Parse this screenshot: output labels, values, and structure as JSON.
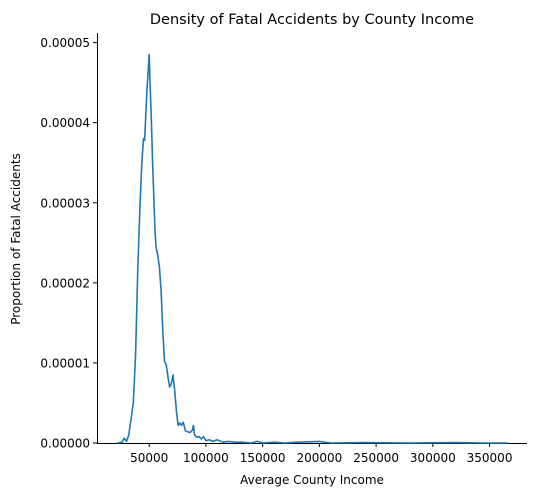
{
  "chart_data": {
    "type": "line",
    "title": "Density of Fatal Accidents by County Income",
    "xlabel": "Average County Income",
    "ylabel": "Proportion of Fatal Accidents",
    "xlim": [
      4000,
      383000
    ],
    "ylim": [
      0,
      5.12e-05
    ],
    "xticks": [
      {
        "value": 50000,
        "label": "50000"
      },
      {
        "value": 100000,
        "label": "100000"
      },
      {
        "value": 150000,
        "label": "150000"
      },
      {
        "value": 200000,
        "label": "200000"
      },
      {
        "value": 250000,
        "label": "250000"
      },
      {
        "value": 300000,
        "label": "300000"
      },
      {
        "value": 350000,
        "label": "350000"
      }
    ],
    "yticks": [
      {
        "value": 0,
        "label": "0.00000"
      },
      {
        "value": 1e-05,
        "label": "0.00001"
      },
      {
        "value": 2e-05,
        "label": "0.00002"
      },
      {
        "value": 3e-05,
        "label": "0.00003"
      },
      {
        "value": 4e-05,
        "label": "0.00004"
      },
      {
        "value": 5e-05,
        "label": "0.00005"
      }
    ],
    "grid": false,
    "legend": "none",
    "color": "#1f77b4",
    "series": [
      {
        "points": [
          [
            22000,
            0
          ],
          [
            26000,
            1e-07
          ],
          [
            28000,
            6e-07
          ],
          [
            30000,
            2e-07
          ],
          [
            32000,
            1e-06
          ],
          [
            34000,
            3e-06
          ],
          [
            36000,
            5e-06
          ],
          [
            38000,
            1.1e-05
          ],
          [
            40000,
            2.2e-05
          ],
          [
            42000,
            3e-05
          ],
          [
            43500,
            3.5e-05
          ],
          [
            45000,
            3.8e-05
          ],
          [
            46000,
            3.78e-05
          ],
          [
            47000,
            4.1e-05
          ],
          [
            48000,
            4.4e-05
          ],
          [
            49000,
            4.62e-05
          ],
          [
            50000,
            4.85e-05
          ],
          [
            51000,
            4.4e-05
          ],
          [
            52000,
            4e-05
          ],
          [
            53000,
            3.5e-05
          ],
          [
            54000,
            3.1e-05
          ],
          [
            55000,
            2.7e-05
          ],
          [
            56000,
            2.45e-05
          ],
          [
            57500,
            2.35e-05
          ],
          [
            59000,
            2.2e-05
          ],
          [
            60500,
            1.9e-05
          ],
          [
            62000,
            1.4e-05
          ],
          [
            63500,
            1.02e-05
          ],
          [
            65000,
            9.8e-06
          ],
          [
            66500,
            8.3e-06
          ],
          [
            68000,
            7e-06
          ],
          [
            69500,
            7.4e-06
          ],
          [
            71000,
            8.5e-06
          ],
          [
            72500,
            6.5e-06
          ],
          [
            74000,
            4e-06
          ],
          [
            75500,
            2.2e-06
          ],
          [
            77000,
            2.5e-06
          ],
          [
            78500,
            2.2e-06
          ],
          [
            80000,
            2.6e-06
          ],
          [
            82000,
            1.5e-06
          ],
          [
            84000,
            1.4e-06
          ],
          [
            86000,
            1.3e-06
          ],
          [
            88000,
            1.6e-06
          ],
          [
            89000,
            2.2e-06
          ],
          [
            90000,
            1e-06
          ],
          [
            92000,
            7e-07
          ],
          [
            94000,
            8e-07
          ],
          [
            96000,
            5e-07
          ],
          [
            98000,
            8e-07
          ],
          [
            100000,
            3e-07
          ],
          [
            103000,
            4e-07
          ],
          [
            106000,
            2e-07
          ],
          [
            110000,
            4e-07
          ],
          [
            115000,
            1e-07
          ],
          [
            120000,
            2e-07
          ],
          [
            126000,
            1e-07
          ],
          [
            132000,
            1e-07
          ],
          [
            140000,
            0
          ],
          [
            145000,
            2e-07
          ],
          [
            150000,
            0
          ],
          [
            160000,
            1e-07
          ],
          [
            170000,
            0
          ],
          [
            180000,
            1e-07
          ],
          [
            200000,
            2e-07
          ],
          [
            210000,
            0
          ],
          [
            240000,
            5e-08
          ],
          [
            280000,
            0
          ],
          [
            320000,
            5e-08
          ],
          [
            345000,
            0
          ],
          [
            366000,
            0
          ]
        ]
      }
    ]
  }
}
